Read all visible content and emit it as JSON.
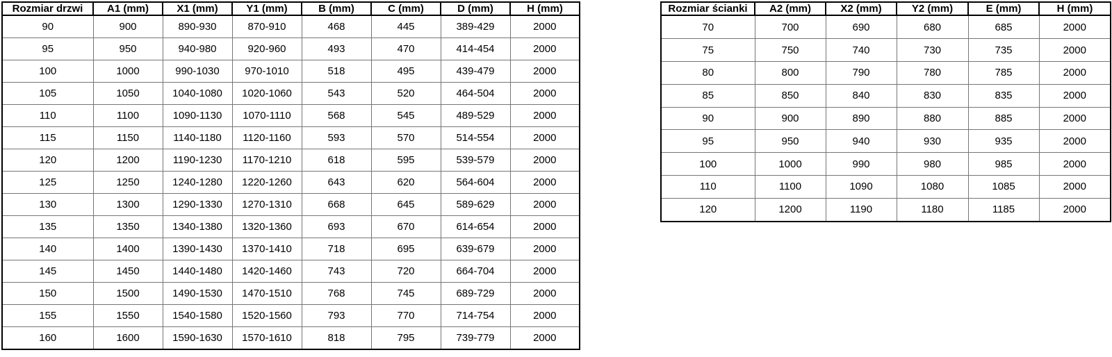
{
  "colors": {
    "background": "#ffffff",
    "outer_border": "#000000",
    "inner_border": "#757575",
    "text": "#000000"
  },
  "tables": [
    {
      "name": "door-size-table",
      "headers": [
        "Rozmiar drzwi",
        "A1 (mm)",
        "X1 (mm)",
        "Y1 (mm)",
        "B (mm)",
        "C (mm)",
        "D (mm)",
        "H (mm)"
      ],
      "rows": [
        [
          "90",
          "900",
          "890-930",
          "870-910",
          "468",
          "445",
          "389-429",
          "2000"
        ],
        [
          "95",
          "950",
          "940-980",
          "920-960",
          "493",
          "470",
          "414-454",
          "2000"
        ],
        [
          "100",
          "1000",
          "990-1030",
          "970-1010",
          "518",
          "495",
          "439-479",
          "2000"
        ],
        [
          "105",
          "1050",
          "1040-1080",
          "1020-1060",
          "543",
          "520",
          "464-504",
          "2000"
        ],
        [
          "110",
          "1100",
          "1090-1130",
          "1070-1110",
          "568",
          "545",
          "489-529",
          "2000"
        ],
        [
          "115",
          "1150",
          "1140-1180",
          "1120-1160",
          "593",
          "570",
          "514-554",
          "2000"
        ],
        [
          "120",
          "1200",
          "1190-1230",
          "1170-1210",
          "618",
          "595",
          "539-579",
          "2000"
        ],
        [
          "125",
          "1250",
          "1240-1280",
          "1220-1260",
          "643",
          "620",
          "564-604",
          "2000"
        ],
        [
          "130",
          "1300",
          "1290-1330",
          "1270-1310",
          "668",
          "645",
          "589-629",
          "2000"
        ],
        [
          "135",
          "1350",
          "1340-1380",
          "1320-1360",
          "693",
          "670",
          "614-654",
          "2000"
        ],
        [
          "140",
          "1400",
          "1390-1430",
          "1370-1410",
          "718",
          "695",
          "639-679",
          "2000"
        ],
        [
          "145",
          "1450",
          "1440-1480",
          "1420-1460",
          "743",
          "720",
          "664-704",
          "2000"
        ],
        [
          "150",
          "1500",
          "1490-1530",
          "1470-1510",
          "768",
          "745",
          "689-729",
          "2000"
        ],
        [
          "155",
          "1550",
          "1540-1580",
          "1520-1560",
          "793",
          "770",
          "714-754",
          "2000"
        ],
        [
          "160",
          "1600",
          "1590-1630",
          "1570-1610",
          "818",
          "795",
          "739-779",
          "2000"
        ]
      ]
    },
    {
      "name": "wall-size-table",
      "headers": [
        "Rozmiar ścianki",
        "A2 (mm)",
        "X2 (mm)",
        "Y2 (mm)",
        "E (mm)",
        "H (mm)"
      ],
      "rows": [
        [
          "70",
          "700",
          "690",
          "680",
          "685",
          "2000"
        ],
        [
          "75",
          "750",
          "740",
          "730",
          "735",
          "2000"
        ],
        [
          "80",
          "800",
          "790",
          "780",
          "785",
          "2000"
        ],
        [
          "85",
          "850",
          "840",
          "830",
          "835",
          "2000"
        ],
        [
          "90",
          "900",
          "890",
          "880",
          "885",
          "2000"
        ],
        [
          "95",
          "950",
          "940",
          "930",
          "935",
          "2000"
        ],
        [
          "100",
          "1000",
          "990",
          "980",
          "985",
          "2000"
        ],
        [
          "110",
          "1100",
          "1090",
          "1080",
          "1085",
          "2000"
        ],
        [
          "120",
          "1200",
          "1190",
          "1180",
          "1185",
          "2000"
        ]
      ]
    }
  ]
}
